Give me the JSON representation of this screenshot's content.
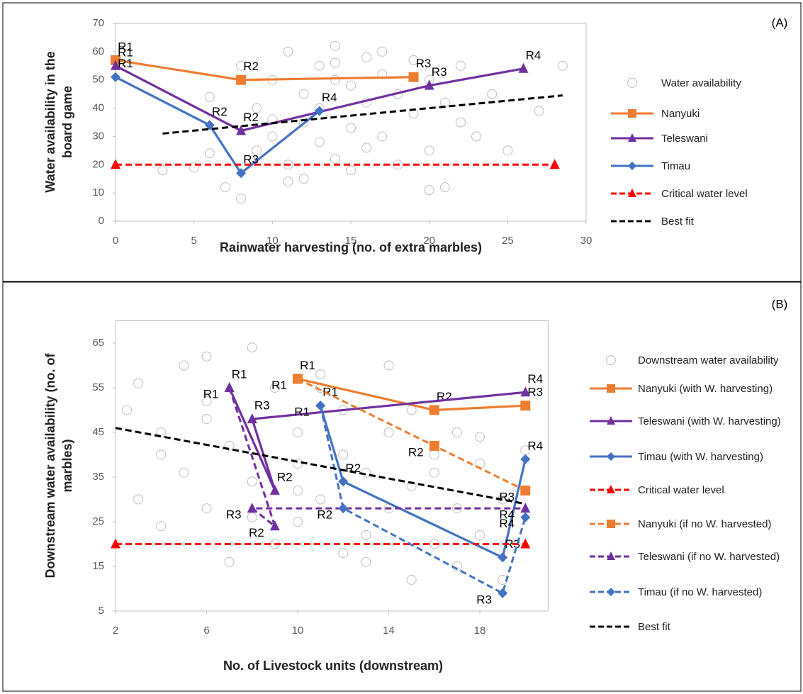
{
  "chart_data": [
    {
      "type": "line",
      "panel_label": "(A)",
      "xlabel": "Rainwater harvesting (no. of extra marbles)",
      "ylabel": [
        "Water availability in the",
        "board game"
      ],
      "xlim": [
        0,
        30
      ],
      "ylim": [
        0,
        70
      ],
      "xticks": [
        0,
        5,
        10,
        15,
        20,
        25,
        30
      ],
      "yticks": [
        0,
        10,
        20,
        30,
        40,
        50,
        60,
        70
      ],
      "series": [
        {
          "name": "Water availability",
          "color": "#bfbfbf",
          "line": "none",
          "marker": "circle",
          "x": [
            6,
            7,
            8,
            9,
            9,
            10,
            10,
            11,
            11,
            12,
            12,
            12,
            13,
            13,
            13,
            14,
            14,
            14,
            15,
            15,
            15,
            16,
            16,
            16,
            17,
            17,
            18,
            18,
            19,
            19,
            20,
            20,
            21,
            21,
            22,
            22,
            23,
            24,
            25,
            27,
            28.5,
            5,
            6,
            8,
            11,
            14,
            17,
            20,
            3,
            10
          ],
          "y": [
            44,
            12,
            55,
            40,
            25,
            50,
            30,
            60,
            20,
            45,
            35,
            15,
            55,
            28,
            40,
            50,
            22,
            62,
            48,
            33,
            18,
            58,
            42,
            26,
            52,
            30,
            45,
            20,
            38,
            57,
            25,
            50,
            12,
            42,
            35,
            55,
            30,
            45,
            25,
            39,
            55,
            19,
            24,
            8,
            14,
            56,
            60,
            11,
            18,
            36
          ]
        },
        {
          "name": "Nanyuki",
          "color": "#ed7d31",
          "line": "solid",
          "marker": "square",
          "x": [
            0,
            8,
            19
          ],
          "y": [
            57,
            50,
            51
          ],
          "point_labels": [
            "R1",
            "R2",
            "R3"
          ]
        },
        {
          "name": "Teleswani",
          "color": "#7030a0",
          "line": "solid",
          "marker": "triangle",
          "x": [
            0,
            8,
            20,
            26
          ],
          "y": [
            55,
            32,
            48,
            54
          ],
          "point_labels": [
            "R1",
            "R2",
            "R3",
            "R4"
          ]
        },
        {
          "name": "Timau",
          "color": "#4472c4",
          "line": "solid",
          "marker": "diamond",
          "x": [
            0,
            6,
            8,
            13
          ],
          "y": [
            51,
            34,
            17,
            39
          ],
          "point_labels": [
            "R1",
            "R2",
            "R3",
            "R4"
          ]
        },
        {
          "name": "Critical water level",
          "color": "#ff0000",
          "line": "dashed",
          "marker": "triangle",
          "x": [
            0,
            28
          ],
          "y": [
            20,
            20
          ]
        },
        {
          "name": "Best fit",
          "color": "#000000",
          "line": "dashed",
          "marker": "none",
          "x": [
            3,
            28.5
          ],
          "y": [
            31,
            44.5
          ]
        }
      ]
    },
    {
      "type": "line",
      "panel_label": "(B)",
      "xlabel": "No. of Livestock units (downstream)",
      "ylabel": [
        "Downstream water availability (no. of",
        "marbles)"
      ],
      "xlim": [
        2,
        21
      ],
      "ylim": [
        5,
        70
      ],
      "xticks": [
        2,
        6,
        10,
        14,
        18
      ],
      "yticks": [
        5,
        15,
        25,
        35,
        45,
        55,
        65
      ],
      "series": [
        {
          "name": "Downstream water availability",
          "color": "#bfbfbf",
          "line": "none",
          "marker": "circle",
          "x": [
            2.5,
            3,
            3,
            4,
            4,
            5,
            5,
            6,
            6,
            6,
            7,
            7,
            8,
            8,
            9,
            9,
            10,
            10,
            10,
            11,
            11,
            12,
            12,
            12,
            13,
            13,
            14,
            14,
            14,
            15,
            15,
            15,
            16,
            16,
            17,
            17,
            17,
            18,
            18,
            19,
            19,
            20,
            4,
            6,
            8,
            11,
            13,
            16,
            18,
            10
          ],
          "y": [
            50,
            30,
            56,
            45,
            24,
            60,
            36,
            52,
            28,
            62,
            42,
            16,
            64,
            34,
            55,
            20,
            45,
            25,
            38,
            58,
            30,
            50,
            18,
            40,
            36,
            22,
            60,
            28,
            45,
            33,
            12,
            50,
            40,
            20,
            45,
            28,
            15,
            38,
            22,
            30,
            12,
            41,
            40,
            48,
            26,
            55,
            16,
            36,
            44,
            32
          ]
        },
        {
          "name": "Nanyuki (with W. harvesting)",
          "color": "#ed7d31",
          "line": "solid",
          "marker": "square",
          "x": [
            10,
            16,
            20
          ],
          "y": [
            57,
            50,
            51
          ],
          "point_labels": [
            "R1",
            "R2",
            "R3"
          ]
        },
        {
          "name": "Teleswani (with W. harvesting)",
          "color": "#7030a0",
          "line": "solid",
          "marker": "triangle",
          "x": [
            7,
            9,
            8,
            20
          ],
          "y": [
            55,
            32,
            48,
            54
          ],
          "point_labels": [
            "R1",
            "R2",
            "R3",
            "R4"
          ]
        },
        {
          "name": "Timau (with W. harvesting)",
          "color": "#4472c4",
          "line": "solid",
          "marker": "diamond",
          "x": [
            11,
            12,
            19,
            20
          ],
          "y": [
            51,
            34,
            17,
            39
          ],
          "point_labels": [
            "R1",
            "R2",
            "R3",
            "R4"
          ]
        },
        {
          "name": "Critical water level",
          "color": "#ff0000",
          "line": "dashed",
          "marker": "triangle",
          "x": [
            2,
            20
          ],
          "y": [
            20,
            20
          ]
        },
        {
          "name": "Nanyuki (if no W. harvested)",
          "color": "#ed7d31",
          "line": "dashed",
          "marker": "square",
          "x": [
            10,
            16,
            20
          ],
          "y": [
            57,
            42,
            32
          ],
          "point_labels": [
            "R1",
            "R2",
            "R3"
          ]
        },
        {
          "name": "Teleswani (if no W. harvested)",
          "color": "#7030a0",
          "line": "dashed",
          "marker": "triangle",
          "x": [
            7,
            9,
            8,
            20
          ],
          "y": [
            55,
            24,
            28,
            28
          ],
          "point_labels": [
            "R1",
            "R2",
            "R3",
            "R4"
          ]
        },
        {
          "name": "Timau (if no W. harvested)",
          "color": "#4472c4",
          "line": "dashed",
          "marker": "diamond",
          "x": [
            11,
            12,
            19,
            20
          ],
          "y": [
            51,
            28,
            9,
            26
          ],
          "point_labels": [
            "R1",
            "R2",
            "R3",
            "R4"
          ]
        },
        {
          "name": "Best fit",
          "color": "#000000",
          "line": "dashed",
          "marker": "none",
          "x": [
            2,
            20
          ],
          "y": [
            46,
            29
          ]
        }
      ]
    }
  ]
}
